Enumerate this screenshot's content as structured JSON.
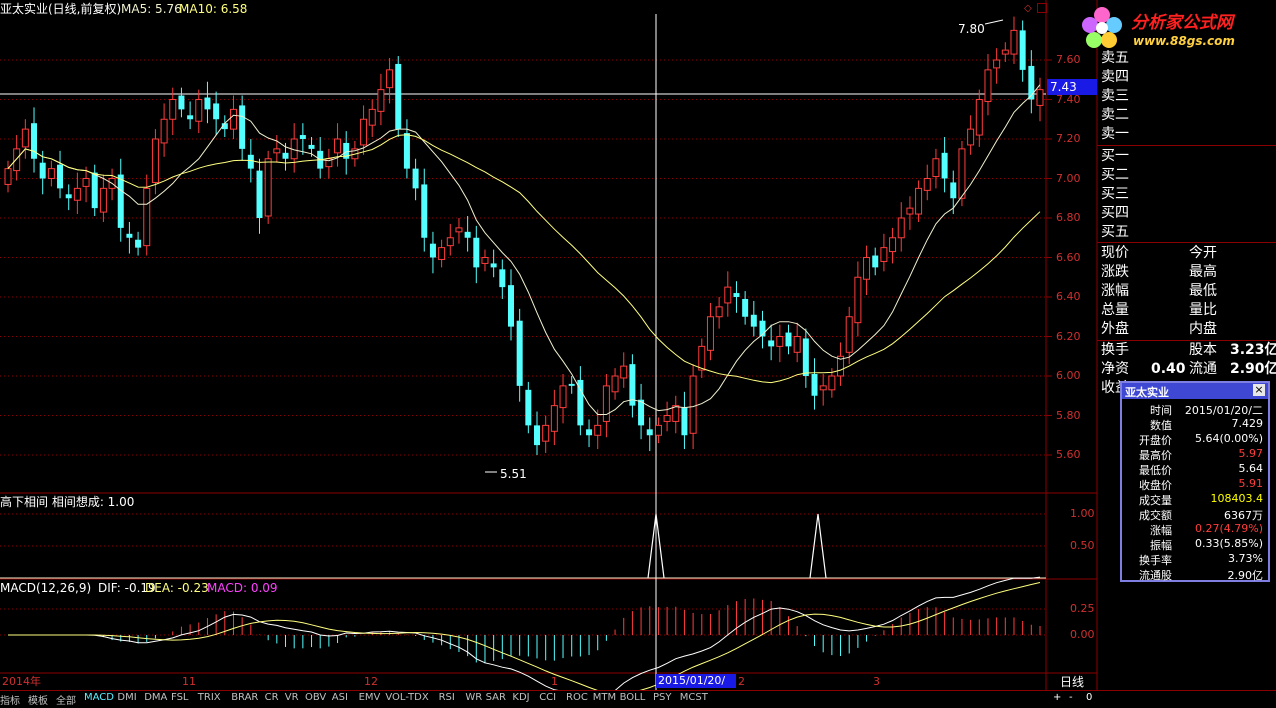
{
  "header": {
    "title": "亚太实业(日线,前复权)",
    "ma5_label": "MA5: 5.76",
    "ma10_label": "MA10: 6.58"
  },
  "price_chart": {
    "y_ticks": [
      "7.60",
      "7.40",
      "7.20",
      "7.00",
      "6.80",
      "6.60",
      "6.40",
      "6.20",
      "6.00",
      "5.80",
      "5.60"
    ],
    "current_price_tag": "7.43",
    "high_marker": "7.80",
    "low_marker": "5.51"
  },
  "indicator1": {
    "label": "高下相间  相间想成: 1.00",
    "y_ticks": [
      "1.00",
      "0.50"
    ]
  },
  "macd": {
    "label": "MACD(12,26,9)",
    "dif": "DIF: -0.19",
    "dea": "DEA: -0.23",
    "macd": "MACD: 0.09",
    "y_ticks": [
      "0.25",
      "0.00"
    ]
  },
  "x_axis": {
    "labels": [
      "2014年",
      "11",
      "12",
      "1",
      "2",
      "3"
    ],
    "cursor_date": "2015/01/20/二",
    "period": "日线"
  },
  "right_panel": {
    "sell_levels": [
      "卖五",
      "卖四",
      "卖三",
      "卖二",
      "卖一"
    ],
    "buy_levels": [
      "买一",
      "买二",
      "买三",
      "买四",
      "买五"
    ],
    "stats_left": [
      "现价",
      "涨跌",
      "涨幅",
      "总量",
      "外盘"
    ],
    "stats_right": [
      "今开",
      "最高",
      "最低",
      "量比",
      "内盘"
    ],
    "turnover_label": "换手",
    "equity_label": "股本",
    "equity_value": "3.23亿",
    "net_asset_label": "净资",
    "net_asset_value": "0.40",
    "float_label": "流通",
    "float_value": "2.90亿",
    "income_label": "收益"
  },
  "logo": {
    "text": "分析家公式网",
    "url_text": "www.88gs.com"
  },
  "popup": {
    "title": "亚太实业",
    "close": "×",
    "rows": [
      {
        "label": "时间",
        "value": "2015/01/20/二",
        "color": "#ffffff"
      },
      {
        "label": "数值",
        "value": "7.429",
        "color": "#ffffff"
      },
      {
        "label": "开盘价",
        "value": "5.64(0.00%)",
        "color": "#ffffff"
      },
      {
        "label": "最高价",
        "value": "5.97",
        "color": "#ff3c3c"
      },
      {
        "label": "最低价",
        "value": "5.64",
        "color": "#ffffff"
      },
      {
        "label": "收盘价",
        "value": "5.91",
        "color": "#ff3c3c"
      },
      {
        "label": "成交量",
        "value": "108403.4",
        "color": "#ffff00"
      },
      {
        "label": "成交额",
        "value": "6367万",
        "color": "#ffffff"
      },
      {
        "label": "涨幅",
        "value": "0.27(4.79%)",
        "color": "#ff3c3c"
      },
      {
        "label": "振幅",
        "value": "0.33(5.85%)",
        "color": "#ffffff"
      },
      {
        "label": "换手率",
        "value": "3.73%",
        "color": "#ffffff"
      },
      {
        "label": "流通股",
        "value": "2.90亿",
        "color": "#ffffff"
      }
    ]
  },
  "bottom_tabs": [
    "指标",
    "模板",
    "全部",
    "MACD",
    "DMI",
    "DMA",
    "FSL",
    "TRIX",
    "BRAR",
    "CR",
    "VR",
    "OBV",
    "ASI",
    "EMV",
    "VOL-TDX",
    "RSI",
    "WR",
    "SAR",
    "KDJ",
    "CCI",
    "ROC",
    "MTM",
    "BOLL",
    "PSY",
    "MCST"
  ],
  "bottom_controls": [
    "+",
    "-",
    "0"
  ],
  "colors": {
    "up": "#ff3c3c",
    "down": "#54ffff",
    "ma_white": "#f0f0d0",
    "ma_yellow": "#ffff80",
    "grid": "#8b0000",
    "active_tab": "#5cf0ff"
  },
  "chart_data": {
    "type": "candlestick",
    "series": [
      {
        "name": "MA5",
        "value": 5.76
      },
      {
        "name": "MA10",
        "value": 6.58
      }
    ],
    "ylim": [
      5.5,
      7.8
    ],
    "x_labels": [
      "2014年",
      "11",
      "12",
      "1",
      "2",
      "3"
    ]
  }
}
